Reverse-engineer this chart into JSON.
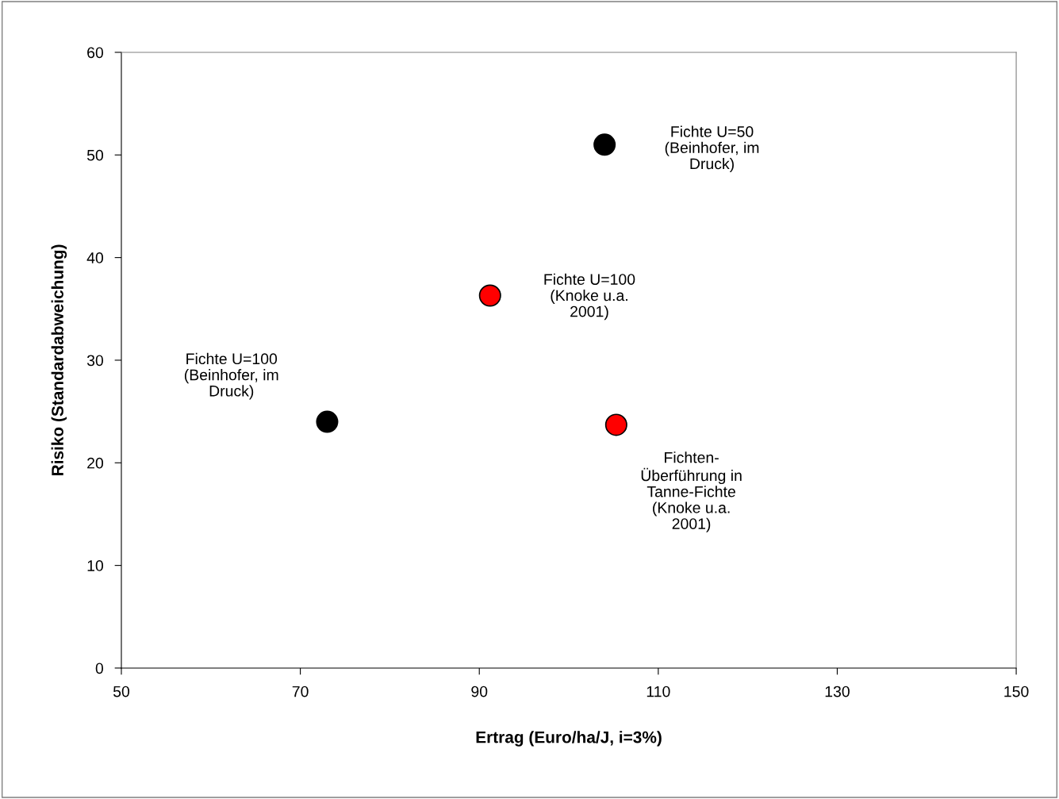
{
  "chart_data": {
    "type": "scatter",
    "xlabel": "Ertrag (Euro/ha/J, i=3%)",
    "ylabel": "Risiko (Standardabweichung)",
    "series": [
      {
        "color": "#000000",
        "x": [
          73,
          104
        ],
        "values": [
          24,
          51
        ]
      },
      {
        "color": "#ff0000",
        "x": [
          91.2,
          105.3
        ],
        "values": [
          36.3,
          23.7
        ]
      }
    ],
    "xlim": [
      50,
      150
    ],
    "xticks": [
      50,
      70,
      90,
      110,
      130,
      150
    ],
    "ylim": [
      0,
      60
    ],
    "yticks": [
      0,
      10,
      20,
      30,
      40,
      50,
      60
    ],
    "grid": false,
    "legend": false,
    "marker": "circle",
    "annotations": [
      "Fichte U=50\n(Beinhofer, im\nDruck)",
      "Fichte U=100\n(Knoke u.a.\n2001)",
      "Fichte U=100\n(Beinhofer, im\nDruck)",
      "Fichten-\nÜberführung in\nTanne-Fichte\n(Knoke u.a.\n2001)"
    ]
  }
}
